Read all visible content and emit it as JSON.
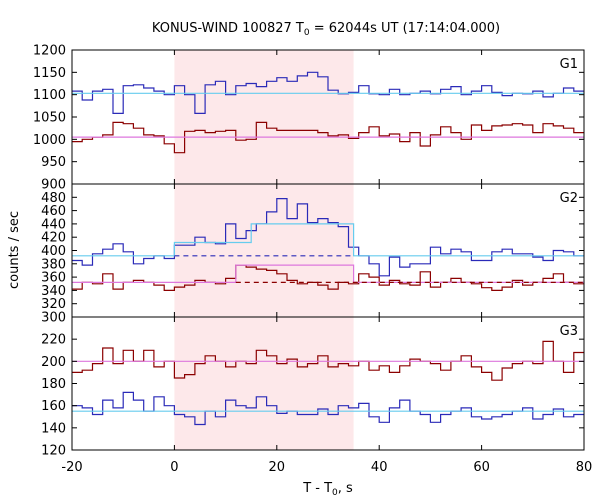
{
  "title": {
    "prefix": "KONUS-WIND 100827 T",
    "sub": "0",
    "suffix": " = 62044s UT (17:14:04.000)"
  },
  "xlabel": {
    "prefix": "T - T",
    "sub": "0",
    "suffix": ", s"
  },
  "ylabel": "counts / sec",
  "chart_data": {
    "type": "line",
    "x_range": [
      -20,
      80
    ],
    "x_ticks": [
      -20,
      0,
      20,
      40,
      60,
      80
    ],
    "highlight_interval": [
      0,
      35
    ],
    "colors": {
      "blue": "#2a2ab8",
      "red": "#8b0000",
      "cyan": "#66ccee",
      "violet": "#dd77dd",
      "shade": "#fde8ea"
    },
    "panels": [
      {
        "name": "G1",
        "ylim": [
          900,
          1200
        ],
        "yticks": [
          900,
          950,
          1000,
          1050,
          1100,
          1150,
          1200
        ],
        "series": [
          {
            "color": "blue",
            "kind": "step",
            "x": [
              -20,
              -18,
              -16,
              -14,
              -12,
              -10,
              -8,
              -6,
              -4,
              -2,
              0,
              2,
              4,
              6,
              8,
              10,
              12,
              14,
              16,
              18,
              20,
              22,
              24,
              26,
              28,
              30,
              32,
              34,
              36,
              38,
              40,
              42,
              44,
              46,
              48,
              50,
              52,
              54,
              56,
              58,
              60,
              62,
              64,
              66,
              68,
              70,
              72,
              74,
              76,
              78,
              80
            ],
            "y": [
              1108,
              1088,
              1108,
              1112,
              1058,
              1120,
              1122,
              1115,
              1108,
              1100,
              1120,
              1100,
              1058,
              1122,
              1130,
              1100,
              1120,
              1125,
              1118,
              1130,
              1138,
              1130,
              1142,
              1150,
              1140,
              1110,
              1102,
              1105,
              1120,
              1102,
              1100,
              1112,
              1100,
              1103,
              1108,
              1102,
              1112,
              1118,
              1100,
              1108,
              1120,
              1105,
              1098,
              1103,
              1102,
              1108,
              1095,
              1103,
              1115,
              1108
            ]
          },
          {
            "color": "red",
            "kind": "step",
            "x": [
              -20,
              -18,
              -16,
              -14,
              -12,
              -10,
              -8,
              -6,
              -4,
              -2,
              0,
              2,
              4,
              6,
              8,
              10,
              12,
              14,
              16,
              18,
              20,
              22,
              24,
              26,
              28,
              30,
              32,
              34,
              36,
              38,
              40,
              42,
              44,
              46,
              48,
              50,
              52,
              54,
              56,
              58,
              60,
              62,
              64,
              66,
              68,
              70,
              72,
              74,
              76,
              78,
              80
            ],
            "y": [
              995,
              1000,
              1005,
              1010,
              1038,
              1035,
              1025,
              1010,
              1008,
              990,
              970,
              1018,
              1020,
              1015,
              1018,
              1020,
              998,
              1000,
              1038,
              1025,
              1020,
              1020,
              1020,
              1020,
              1015,
              1008,
              1010,
              1002,
              1015,
              1028,
              1008,
              1012,
              995,
              1015,
              985,
              1010,
              1028,
              1015,
              1000,
              1032,
              1020,
              1030,
              1032,
              1035,
              1032,
              1015,
              1035,
              1030,
              1025,
              1015
            ]
          },
          {
            "color": "cyan",
            "kind": "line",
            "x": [
              -20,
              80
            ],
            "y": [
              1103,
              1103
            ]
          },
          {
            "color": "violet",
            "kind": "line",
            "x": [
              -20,
              80
            ],
            "y": [
              1005,
              1005
            ]
          }
        ]
      },
      {
        "name": "G2",
        "ylim": [
          300,
          500
        ],
        "yticks": [
          300,
          320,
          340,
          360,
          380,
          400,
          420,
          440,
          460,
          480
        ],
        "series": [
          {
            "color": "blue",
            "kind": "step",
            "x": [
              -20,
              -18,
              -16,
              -14,
              -12,
              -10,
              -8,
              -6,
              -4,
              -2,
              0,
              2,
              4,
              6,
              8,
              10,
              12,
              14,
              16,
              18,
              20,
              22,
              24,
              26,
              28,
              30,
              32,
              34,
              36,
              38,
              40,
              42,
              44,
              46,
              48,
              50,
              52,
              54,
              56,
              58,
              60,
              62,
              64,
              66,
              68,
              70,
              72,
              74,
              76,
              78,
              80
            ],
            "y": [
              385,
              378,
              395,
              402,
              410,
              398,
              380,
              388,
              392,
              388,
              408,
              408,
              420,
              412,
              410,
              440,
              418,
              430,
              440,
              458,
              478,
              448,
              470,
              442,
              448,
              442,
              436,
              405,
              392,
              380,
              362,
              390,
              375,
              380,
              380,
              405,
              395,
              402,
              398,
              385,
              385,
              398,
              402,
              395,
              395,
              390,
              385,
              400,
              398,
              392
            ],
            "filled_until_index": 18
          },
          {
            "color": "red",
            "kind": "step",
            "x": [
              -20,
              -18,
              -16,
              -14,
              -12,
              -10,
              -8,
              -6,
              -4,
              -2,
              0,
              2,
              4,
              6,
              8,
              10,
              12,
              14,
              16,
              18,
              20,
              22,
              24,
              26,
              28,
              30,
              32,
              34,
              36,
              38,
              40,
              42,
              44,
              46,
              48,
              50,
              52,
              54,
              56,
              58,
              60,
              62,
              64,
              66,
              68,
              70,
              72,
              74,
              76,
              78,
              80
            ],
            "y": [
              342,
              352,
              350,
              365,
              342,
              352,
              355,
              352,
              348,
              340,
              345,
              348,
              355,
              352,
              350,
              358,
              378,
              375,
              372,
              370,
              365,
              355,
              350,
              352,
              348,
              342,
              352,
              350,
              365,
              360,
              348,
              355,
              350,
              348,
              368,
              345,
              352,
              358,
              352,
              350,
              344,
              340,
              345,
              355,
              348,
              352,
              358,
              365,
              352,
              350
            ]
          },
          {
            "color": "cyan",
            "kind": "step",
            "x": [
              -20,
              0,
              15,
              35,
              80
            ],
            "y": [
              392,
              412,
              440,
              392
            ]
          },
          {
            "color": "violet",
            "kind": "step",
            "x": [
              -20,
              12,
              35,
              80
            ],
            "y": [
              352,
              378,
              352
            ]
          },
          {
            "color": "blue",
            "kind": "dashed",
            "x": [
              0,
              35
            ],
            "y": [
              392,
              392
            ]
          },
          {
            "color": "red",
            "kind": "dashed",
            "x": [
              12,
              80
            ],
            "y": [
              352,
              352
            ]
          }
        ]
      },
      {
        "name": "G3",
        "ylim": [
          120,
          240
        ],
        "yticks": [
          120,
          140,
          160,
          180,
          200,
          220
        ],
        "series": [
          {
            "color": "red",
            "kind": "step",
            "x": [
              -20,
              -18,
              -16,
              -14,
              -12,
              -10,
              -8,
              -6,
              -4,
              -2,
              0,
              2,
              4,
              6,
              8,
              10,
              12,
              14,
              16,
              18,
              20,
              22,
              24,
              26,
              28,
              30,
              32,
              34,
              36,
              38,
              40,
              42,
              44,
              46,
              48,
              50,
              52,
              54,
              56,
              58,
              60,
              62,
              64,
              66,
              68,
              70,
              72,
              74,
              76,
              78,
              80
            ],
            "y": [
              190,
              192,
              198,
              212,
              198,
              210,
              200,
              210,
              195,
              200,
              185,
              188,
              198,
              205,
              200,
              195,
              200,
              198,
              210,
              205,
              198,
              202,
              195,
              198,
              205,
              195,
              198,
              196,
              200,
              192,
              196,
              190,
              196,
              202,
              200,
              198,
              192,
              200,
              205,
              195,
              190,
              183,
              194,
              198,
              200,
              198,
              218,
              200,
              190,
              208
            ],
            "filled_until_index": 0
          },
          {
            "color": "blue",
            "kind": "step",
            "x": [
              -20,
              -18,
              -16,
              -14,
              -12,
              -10,
              -8,
              -6,
              -4,
              -2,
              0,
              2,
              4,
              6,
              8,
              10,
              12,
              14,
              16,
              18,
              20,
              22,
              24,
              26,
              28,
              30,
              32,
              34,
              36,
              38,
              40,
              42,
              44,
              46,
              48,
              50,
              52,
              54,
              56,
              58,
              60,
              62,
              64,
              66,
              68,
              70,
              72,
              74,
              76,
              78,
              80
            ],
            "y": [
              160,
              158,
              152,
              165,
              158,
              172,
              165,
              155,
              168,
              160,
              152,
              150,
              143,
              155,
              150,
              165,
              160,
              158,
              168,
              160,
              153,
              155,
              152,
              152,
              157,
              152,
              160,
              158,
              162,
              150,
              145,
              158,
              165,
              155,
              152,
              145,
              152,
              155,
              158,
              150,
              148,
              150,
              152,
              155,
              158,
              148,
              152,
              157,
              150,
              152
            ]
          },
          {
            "color": "violet",
            "kind": "line",
            "x": [
              -20,
              80
            ],
            "y": [
              200,
              200
            ]
          },
          {
            "color": "cyan",
            "kind": "line",
            "x": [
              -20,
              80
            ],
            "y": [
              155,
              155
            ]
          }
        ]
      }
    ]
  }
}
